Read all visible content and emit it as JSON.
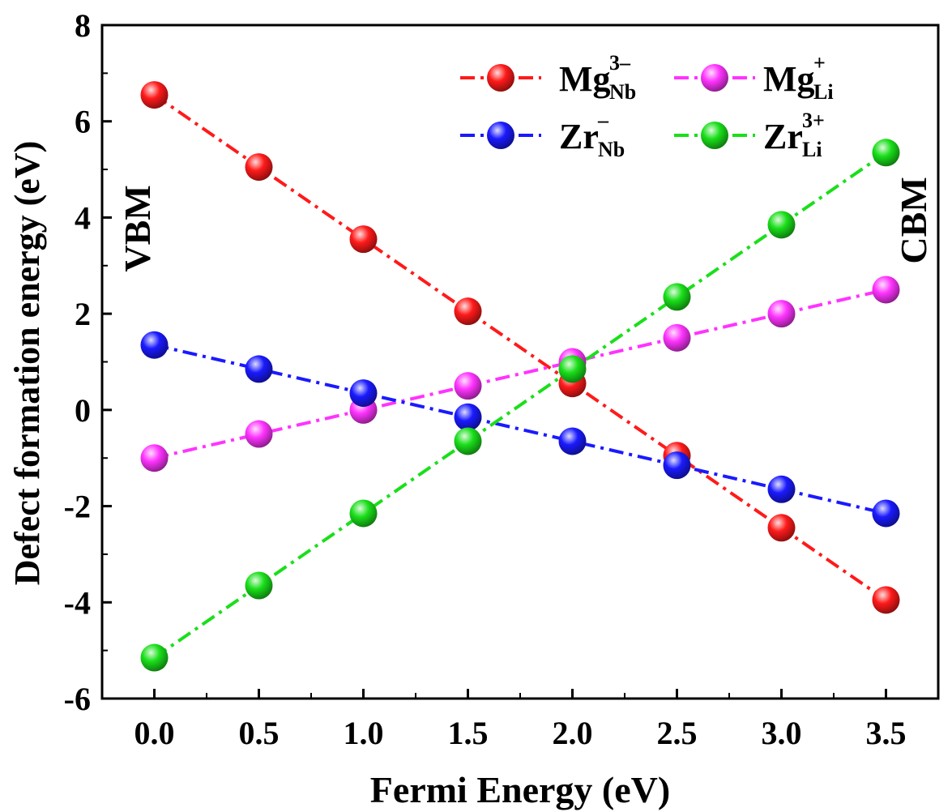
{
  "chart_data": {
    "type": "line",
    "title": "",
    "xlabel": "Fermi Energy (eV)",
    "ylabel": "Defect formation energy (eV)",
    "xlim": [
      -0.25,
      3.75
    ],
    "ylim": [
      -6,
      8
    ],
    "x": [
      0.0,
      0.5,
      1.0,
      1.5,
      2.0,
      2.5,
      3.0,
      3.5
    ],
    "xticks": [
      "0.0",
      "0.5",
      "1.0",
      "1.5",
      "2.0",
      "2.5",
      "3.0",
      "3.5"
    ],
    "yticks": [
      -6,
      -4,
      -2,
      0,
      2,
      4,
      6,
      8
    ],
    "annotations": {
      "left": "VBM",
      "right": "CBM"
    },
    "legend_position": "top-right",
    "series": [
      {
        "name": "Mg_Nb^3-",
        "base": "Mg",
        "sub": "Nb",
        "sup": "3–",
        "color": "#ff1a1a",
        "dash": "dashdot",
        "values": [
          6.55,
          5.05,
          3.55,
          2.05,
          0.55,
          -0.95,
          -2.45,
          -3.95
        ]
      },
      {
        "name": "Mg_Li^+",
        "base": "Mg",
        "sub": "Li",
        "sup": "+",
        "color": "#ff33ff",
        "dash": "dashdot",
        "values": [
          -1.0,
          -0.5,
          0.0,
          0.5,
          1.0,
          1.5,
          2.0,
          2.5
        ]
      },
      {
        "name": "Zr_Nb^-",
        "base": "Zr",
        "sub": "Nb",
        "sup": "–",
        "color": "#1a1aff",
        "dash": "dashdot",
        "values": [
          1.35,
          0.85,
          0.35,
          -0.15,
          -0.65,
          -1.15,
          -1.65,
          -2.15
        ]
      },
      {
        "name": "Zr_Li^3+",
        "base": "Zr",
        "sub": "Li",
        "sup": "3+",
        "color": "#1adf1a",
        "dash": "dashdot",
        "values": [
          -5.15,
          -3.65,
          -2.15,
          -0.65,
          0.85,
          2.35,
          3.85,
          5.35
        ]
      }
    ]
  }
}
